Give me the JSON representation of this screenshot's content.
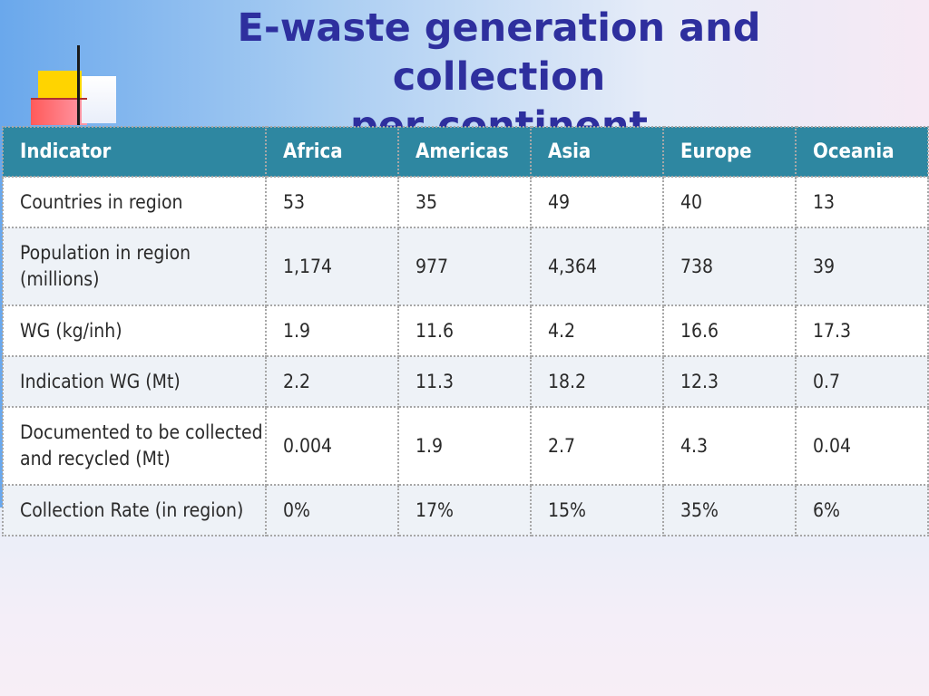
{
  "slide": {
    "title_line1": "E-waste generation and collection",
    "title_line2": "per continent"
  },
  "table": {
    "headers": [
      "Indicator",
      "Africa",
      "Americas",
      "Asia",
      "Europe",
      "Oceania"
    ],
    "rows": [
      [
        "Countries in region",
        "53",
        "35",
        "49",
        "40",
        "13"
      ],
      [
        "Population in region (millions)",
        "1,174",
        "977",
        "4,364",
        "738",
        "39"
      ],
      [
        "WG (kg/inh)",
        "1.9",
        "11.6",
        "4.2",
        "16.6",
        "17.3"
      ],
      [
        "Indication WG (Mt)",
        "2.2",
        "11.3",
        "18.2",
        "12.3",
        "0.7"
      ],
      [
        "Documented to be collected and recycled (Mt)",
        "0.004",
        "1.9",
        "2.7",
        "4.3",
        "0.04"
      ],
      [
        "Collection Rate (in region)",
        "0%",
        "17%",
        "15%",
        "35%",
        "6%"
      ]
    ]
  },
  "colors": {
    "title": "#2e2f9e",
    "header_bg": "#2e87a1",
    "row_alt_bg": "#eef2f7"
  }
}
